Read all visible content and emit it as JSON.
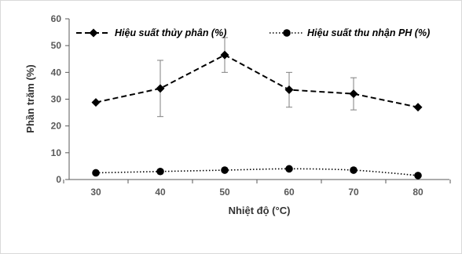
{
  "chart_data": {
    "type": "line",
    "xlabel": "Nhiệt độ (°C)",
    "ylabel": "Phần trăm (%)",
    "ylim": [
      0,
      60
    ],
    "yticks": [
      0,
      10,
      20,
      30,
      40,
      50,
      60
    ],
    "x": [
      30,
      40,
      50,
      60,
      70,
      80
    ],
    "legend_position": "top",
    "grid": false,
    "series": [
      {
        "name": "Hiệu suất thủy phân (%)",
        "values": [
          28.8,
          34.0,
          46.5,
          33.5,
          32.0,
          27.0
        ],
        "error": [
          0,
          10.5,
          6.5,
          6.5,
          6.0,
          0
        ],
        "line_style": "dashed",
        "marker": "diamond",
        "color": "#000000"
      },
      {
        "name": "Hiệu suất thu nhận PH (%)",
        "values": [
          2.5,
          3.0,
          3.5,
          4.0,
          3.5,
          1.5
        ],
        "line_style": "dotted",
        "marker": "circle",
        "color": "#000000"
      }
    ]
  }
}
